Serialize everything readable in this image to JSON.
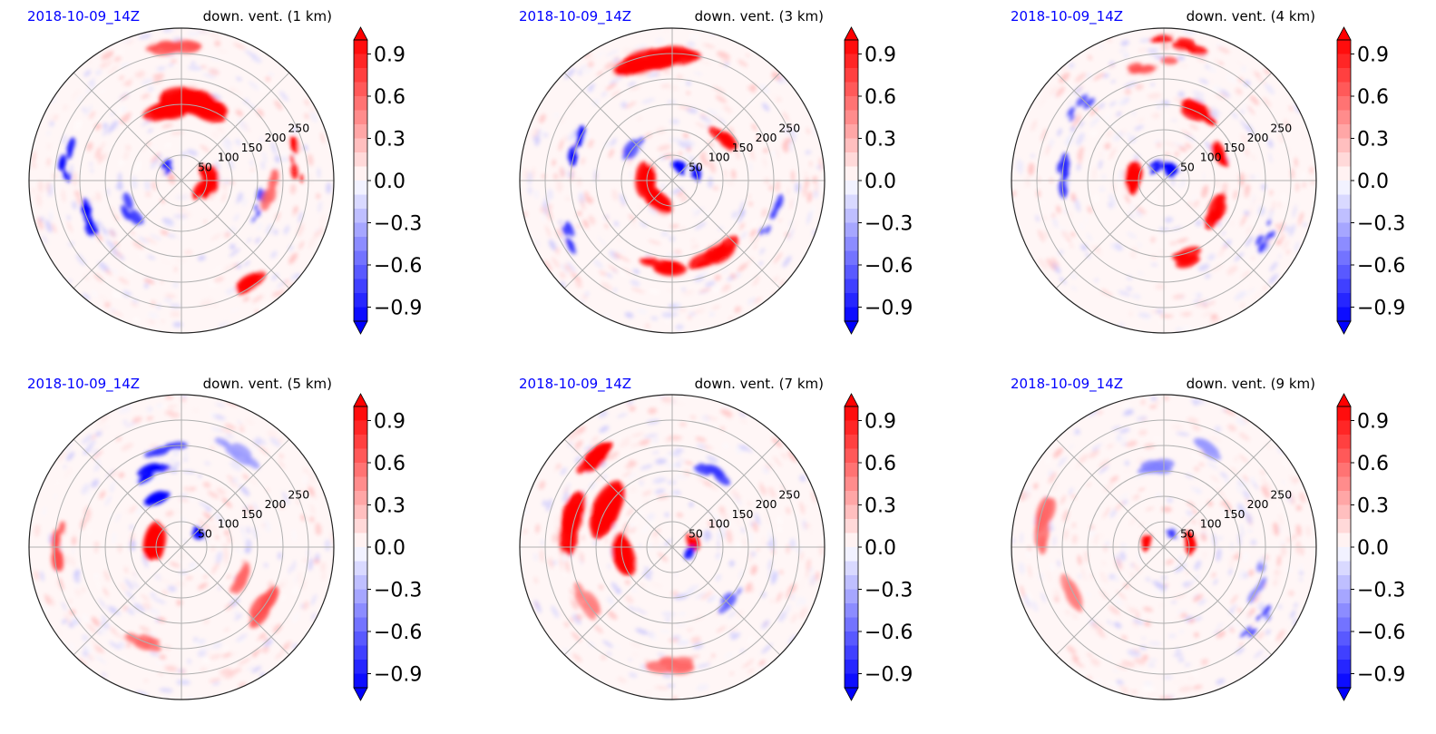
{
  "figure": {
    "date_color": "#0000ff",
    "red": "#ff0000",
    "blue": "#0000ff",
    "grid_color": "#b0b0b0"
  },
  "chart_data": [
    {
      "type": "heatmap",
      "projection": "polar",
      "date_label": "2018-10-09_14Z",
      "title": "down. vent. (1 km)",
      "radial_ticks": [
        "50",
        "100",
        "150",
        "200",
        "250"
      ],
      "colorbar": {
        "min": -1.0,
        "max": 1.0,
        "ticks": [
          "0.9",
          "0.6",
          "0.3",
          "0.0",
          "−0.3",
          "−0.6",
          "−0.9"
        ],
        "extend": "both",
        "colormap": "bwr"
      },
      "features": [
        {
          "r": 55,
          "theta": 10,
          "value": 1,
          "size": 22
        },
        {
          "r": 45,
          "theta": -20,
          "value": 1,
          "size": 18
        },
        {
          "r": 160,
          "theta": 80,
          "value": 1,
          "size": 38
        },
        {
          "r": 150,
          "theta": 65,
          "value": 1,
          "size": 28
        },
        {
          "r": 140,
          "theta": 100,
          "value": 1,
          "size": 28
        },
        {
          "r": 240,
          "theta": -55,
          "value": 1,
          "size": 20
        },
        {
          "r": 230,
          "theta": 10,
          "value": 1,
          "size": 12
        },
        {
          "r": 270,
          "theta": 95,
          "value": 0.7,
          "size": 22
        },
        {
          "r": 230,
          "theta": 170,
          "value": -1,
          "size": 14
        },
        {
          "r": 200,
          "theta": 200,
          "value": -1,
          "size": 14
        },
        {
          "r": 120,
          "theta": 210,
          "value": -0.8,
          "size": 14
        },
        {
          "r": 160,
          "theta": -20,
          "value": -0.8,
          "size": 10
        },
        {
          "r": 40,
          "theta": 140,
          "value": -0.9,
          "size": 10
        },
        {
          "r": 180,
          "theta": -5,
          "value": 0.6,
          "size": 16
        }
      ]
    },
    {
      "type": "heatmap",
      "projection": "polar",
      "date_label": "2018-10-09_14Z",
      "title": "down. vent. (3 km)",
      "radial_ticks": [
        "50",
        "100",
        "150",
        "200",
        "250"
      ],
      "colorbar": {
        "min": -1.0,
        "max": 1.0,
        "ticks": [
          "0.9",
          "0.6",
          "0.3",
          "0.0",
          "−0.3",
          "−0.6",
          "−0.9"
        ],
        "extend": "both",
        "colormap": "bwr"
      },
      "features": [
        {
          "r": 50,
          "theta": 180,
          "value": 1,
          "size": 30
        },
        {
          "r": 45,
          "theta": 230,
          "value": 1,
          "size": 24
        },
        {
          "r": 30,
          "theta": 60,
          "value": -1,
          "size": 14
        },
        {
          "r": 50,
          "theta": 20,
          "value": -1,
          "size": 12
        },
        {
          "r": 240,
          "theta": 90,
          "value": 1,
          "size": 32
        },
        {
          "r": 240,
          "theta": 110,
          "value": 1,
          "size": 26
        },
        {
          "r": 170,
          "theta": -60,
          "value": 1,
          "size": 24
        },
        {
          "r": 170,
          "theta": -100,
          "value": 1,
          "size": 22
        },
        {
          "r": 130,
          "theta": 40,
          "value": 1,
          "size": 16
        },
        {
          "r": 200,
          "theta": 160,
          "value": -1,
          "size": 14
        },
        {
          "r": 230,
          "theta": -150,
          "value": -0.8,
          "size": 12
        },
        {
          "r": 210,
          "theta": -20,
          "value": -0.8,
          "size": 10
        },
        {
          "r": 100,
          "theta": 140,
          "value": -0.7,
          "size": 12
        }
      ]
    },
    {
      "type": "heatmap",
      "projection": "polar",
      "date_label": "2018-10-09_14Z",
      "title": "down. vent. (4 km)",
      "radial_ticks": [
        "50",
        "100",
        "150",
        "200",
        "250"
      ],
      "colorbar": {
        "min": -1.0,
        "max": 1.0,
        "ticks": [
          "0.9",
          "0.6",
          "0.3",
          "0.0",
          "−0.3",
          "−0.6",
          "−0.9"
        ],
        "extend": "both",
        "colormap": "bwr"
      },
      "features": [
        {
          "r": 60,
          "theta": 175,
          "value": 1,
          "size": 28
        },
        {
          "r": 25,
          "theta": 60,
          "value": -1,
          "size": 14
        },
        {
          "r": 35,
          "theta": 120,
          "value": -1,
          "size": 10
        },
        {
          "r": 150,
          "theta": 60,
          "value": 1,
          "size": 22
        },
        {
          "r": 120,
          "theta": 20,
          "value": 1,
          "size": 16
        },
        {
          "r": 120,
          "theta": -30,
          "value": 1,
          "size": 18
        },
        {
          "r": 160,
          "theta": -80,
          "value": 1,
          "size": 18
        },
        {
          "r": 270,
          "theta": 85,
          "value": 1,
          "size": 16
        },
        {
          "r": 230,
          "theta": 95,
          "value": 0.7,
          "size": 16
        },
        {
          "r": 200,
          "theta": 175,
          "value": -0.9,
          "size": 14
        },
        {
          "r": 230,
          "theta": -30,
          "value": -0.8,
          "size": 10
        },
        {
          "r": 220,
          "theta": 140,
          "value": -0.7,
          "size": 12
        }
      ]
    },
    {
      "type": "heatmap",
      "projection": "polar",
      "date_label": "2018-10-09_14Z",
      "title": "down. vent. (5 km)",
      "radial_ticks": [
        "50",
        "100",
        "150",
        "200",
        "250"
      ],
      "colorbar": {
        "min": -1.0,
        "max": 1.0,
        "ticks": [
          "0.9",
          "0.6",
          "0.3",
          "0.0",
          "−0.3",
          "−0.6",
          "−0.9"
        ],
        "extend": "both",
        "colormap": "bwr"
      },
      "features": [
        {
          "r": 50,
          "theta": 170,
          "value": 1,
          "size": 28
        },
        {
          "r": 160,
          "theta": 110,
          "value": -1,
          "size": 18
        },
        {
          "r": 110,
          "theta": 120,
          "value": -1,
          "size": 18
        },
        {
          "r": 200,
          "theta": 100,
          "value": -0.8,
          "size": 16
        },
        {
          "r": 40,
          "theta": 40,
          "value": -1,
          "size": 10
        },
        {
          "r": 200,
          "theta": -40,
          "value": 0.7,
          "size": 22
        },
        {
          "r": 130,
          "theta": -30,
          "value": 0.6,
          "size": 16
        },
        {
          "r": 240,
          "theta": 180,
          "value": 0.7,
          "size": 16
        },
        {
          "r": 220,
          "theta": 60,
          "value": -0.4,
          "size": 20
        },
        {
          "r": 200,
          "theta": -110,
          "value": 0.6,
          "size": 16
        }
      ]
    },
    {
      "type": "heatmap",
      "projection": "polar",
      "date_label": "2018-10-09_14Z",
      "title": "down. vent. (7 km)",
      "radial_ticks": [
        "50",
        "100",
        "150",
        "200",
        "250"
      ],
      "colorbar": {
        "min": -1.0,
        "max": 1.0,
        "ticks": [
          "0.9",
          "0.6",
          "0.3",
          "0.0",
          "−0.3",
          "−0.6",
          "−0.9"
        ],
        "extend": "both",
        "colormap": "bwr"
      },
      "features": [
        {
          "r": 150,
          "theta": 150,
          "value": 1,
          "size": 40
        },
        {
          "r": 200,
          "theta": 170,
          "value": 1,
          "size": 36
        },
        {
          "r": 100,
          "theta": 190,
          "value": 1,
          "size": 30
        },
        {
          "r": 230,
          "theta": 130,
          "value": 1,
          "size": 26
        },
        {
          "r": 40,
          "theta": 10,
          "value": 1,
          "size": 12
        },
        {
          "r": 30,
          "theta": -20,
          "value": -0.9,
          "size": 10
        },
        {
          "r": 170,
          "theta": 60,
          "value": -0.8,
          "size": 14
        },
        {
          "r": 150,
          "theta": -40,
          "value": -0.6,
          "size": 12
        },
        {
          "r": 230,
          "theta": -90,
          "value": 0.6,
          "size": 20
        },
        {
          "r": 200,
          "theta": -150,
          "value": 0.5,
          "size": 18
        }
      ]
    },
    {
      "type": "heatmap",
      "projection": "polar",
      "date_label": "2018-10-09_14Z",
      "title": "down. vent. (9 km)",
      "radial_ticks": [
        "50",
        "100",
        "150",
        "200",
        "250"
      ],
      "colorbar": {
        "min": -1.0,
        "max": 1.0,
        "ticks": [
          "0.9",
          "0.6",
          "0.3",
          "0.0",
          "−0.3",
          "−0.6",
          "−0.9"
        ],
        "extend": "both",
        "colormap": "bwr"
      },
      "features": [
        {
          "r": 50,
          "theta": 10,
          "value": 1,
          "size": 18
        },
        {
          "r": 40,
          "theta": 160,
          "value": 1,
          "size": 14
        },
        {
          "r": 30,
          "theta": 60,
          "value": -0.8,
          "size": 8
        },
        {
          "r": 240,
          "theta": 170,
          "value": 0.6,
          "size": 26
        },
        {
          "r": 200,
          "theta": -150,
          "value": 0.5,
          "size": 22
        },
        {
          "r": 160,
          "theta": 100,
          "value": -0.5,
          "size": 16
        },
        {
          "r": 200,
          "theta": -20,
          "value": -0.5,
          "size": 14
        },
        {
          "r": 240,
          "theta": -40,
          "value": -0.8,
          "size": 10
        },
        {
          "r": 210,
          "theta": 60,
          "value": -0.4,
          "size": 16
        }
      ]
    }
  ]
}
